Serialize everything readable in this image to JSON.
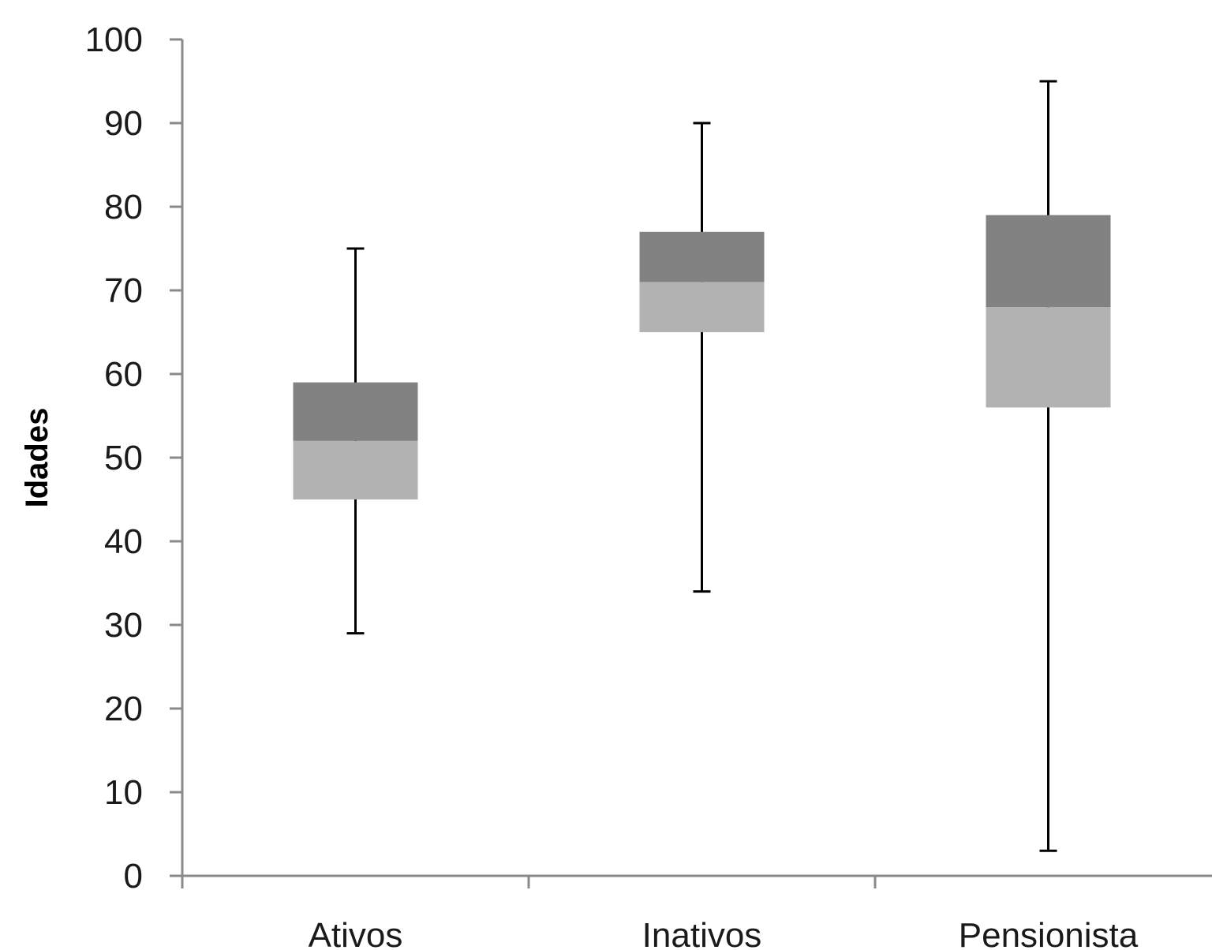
{
  "chart_data": {
    "type": "box",
    "ylabel": "Idades",
    "xlabel": "",
    "ylim": [
      0,
      100
    ],
    "yticks": [
      "0",
      "10",
      "20",
      "30",
      "40",
      "50",
      "60",
      "70",
      "80",
      "90",
      "100"
    ],
    "categories": [
      "Ativos",
      "Inativos",
      "Pensionista"
    ],
    "boxes": [
      {
        "category": "Ativos",
        "min": 29,
        "q1": 45,
        "median": 52,
        "q3": 59,
        "max": 75
      },
      {
        "category": "Inativos",
        "min": 34,
        "q1": 65,
        "median": 71,
        "q3": 77,
        "max": 90
      },
      {
        "category": "Pensionista",
        "min": 3,
        "q1": 56,
        "median": 68,
        "q3": 79,
        "max": 95
      }
    ],
    "grid": false,
    "legend": "none"
  },
  "colors": {
    "lower_box": "#b2b2b2",
    "upper_box": "#828282",
    "whisker": "#000000",
    "axis": "#8a8a8a",
    "text": "#1a1a1a"
  }
}
